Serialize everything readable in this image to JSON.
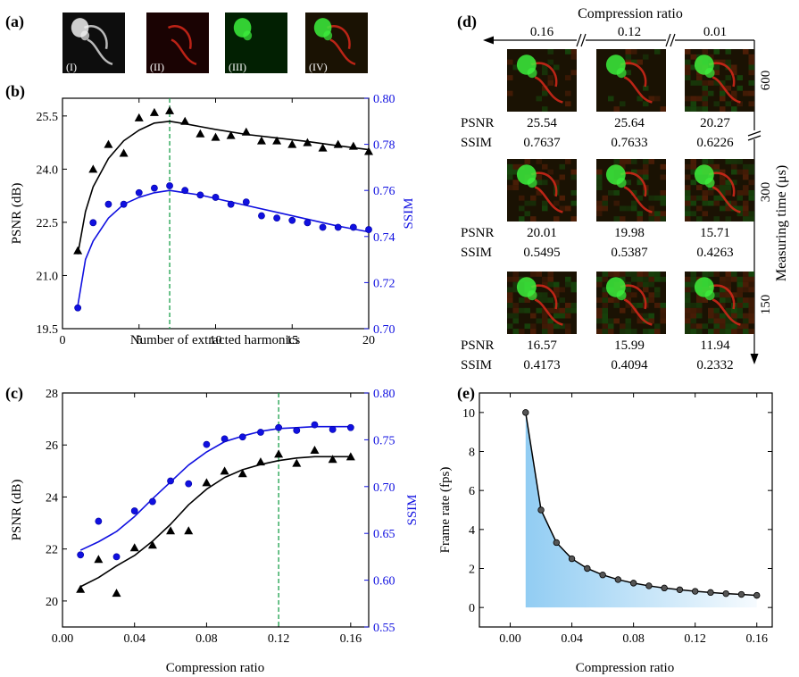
{
  "panels": {
    "a": {
      "label": "(a)",
      "tiles": [
        {
          "tag": "(I)",
          "tint": "#bdbdbd"
        },
        {
          "tag": "(II)",
          "tint": "#d21a1a"
        },
        {
          "tag": "(III)",
          "tint": "#1fd21f"
        },
        {
          "tag": "(IV)",
          "tint": "#b85a25"
        }
      ]
    },
    "d": {
      "label": "(d)",
      "title": "Compression ratio",
      "col_ratios": [
        "0.16",
        "0.12",
        "0.01"
      ],
      "time_label": "Measuring time (μs)",
      "row_times": [
        "600",
        "300",
        "150"
      ],
      "metric_labels": [
        "PSNR",
        "SSIM"
      ],
      "rows": [
        {
          "psnr": [
            "25.54",
            "25.64",
            "20.27"
          ],
          "ssim": [
            "0.7637",
            "0.7633",
            "0.6226"
          ]
        },
        {
          "psnr": [
            "20.01",
            "19.98",
            "15.71"
          ],
          "ssim": [
            "0.5495",
            "0.5387",
            "0.4263"
          ]
        },
        {
          "psnr": [
            "16.57",
            "15.99",
            "11.94"
          ],
          "ssim": [
            "0.4173",
            "0.4094",
            "0.2332"
          ]
        }
      ]
    }
  },
  "colors": {
    "black_series": "#000000",
    "blue_series": "#1010e0",
    "guide": "#1aa04a",
    "fill": "#8ccaf2"
  },
  "chart_data": [
    {
      "id": "b",
      "label": "(b)",
      "type": "scatter",
      "xlabel": "Number of extracted harmonics",
      "ylabel": "PSNR (dB)",
      "y2label": "SSIM",
      "xlim": [
        0,
        20
      ],
      "ylim": [
        19.5,
        26.0
      ],
      "y2lim": [
        0.7,
        0.8
      ],
      "xticks": [
        "0",
        "5",
        "10",
        "15",
        "20"
      ],
      "yticks": [
        "19.5",
        "21.0",
        "22.5",
        "24.0",
        "25.5"
      ],
      "y2ticks": [
        "0.70",
        "0.72",
        "0.74",
        "0.76",
        "0.78",
        "0.80"
      ],
      "vline": 7,
      "series": [
        {
          "name": "PSNR",
          "axis": "left",
          "marker": "triangle",
          "x": [
            1,
            2,
            3,
            4,
            5,
            6,
            7,
            8,
            9,
            10,
            11,
            12,
            13,
            14,
            15,
            16,
            17,
            18,
            19,
            20
          ],
          "values": [
            21.7,
            24.0,
            24.7,
            24.45,
            25.45,
            25.6,
            25.65,
            25.35,
            25.0,
            24.9,
            24.95,
            25.05,
            24.8,
            24.8,
            24.7,
            24.75,
            24.6,
            24.7,
            24.65,
            24.5
          ],
          "fit_x": [
            1,
            1.5,
            2,
            3,
            4,
            5,
            6,
            7,
            8,
            9,
            10,
            12,
            14,
            16,
            18,
            20
          ],
          "fit": [
            21.6,
            22.8,
            23.5,
            24.3,
            24.8,
            25.1,
            25.3,
            25.35,
            25.28,
            25.2,
            25.12,
            24.98,
            24.88,
            24.78,
            24.66,
            24.55
          ]
        },
        {
          "name": "SSIM",
          "axis": "right",
          "marker": "circle",
          "x": [
            1,
            2,
            3,
            4,
            5,
            6,
            7,
            8,
            9,
            10,
            11,
            12,
            13,
            14,
            15,
            16,
            17,
            18,
            19,
            20
          ],
          "values": [
            0.709,
            0.746,
            0.754,
            0.754,
            0.759,
            0.761,
            0.762,
            0.76,
            0.758,
            0.757,
            0.754,
            0.755,
            0.749,
            0.748,
            0.747,
            0.746,
            0.744,
            0.744,
            0.744,
            0.743
          ],
          "fit_x": [
            1,
            1.5,
            2,
            3,
            4,
            5,
            6,
            7,
            8,
            9,
            10,
            12,
            14,
            16,
            18,
            20
          ],
          "fit": [
            0.71,
            0.73,
            0.738,
            0.748,
            0.754,
            0.757,
            0.759,
            0.76,
            0.759,
            0.758,
            0.7565,
            0.7535,
            0.7505,
            0.7475,
            0.7445,
            0.742
          ]
        }
      ]
    },
    {
      "id": "c",
      "label": "(c)",
      "type": "scatter",
      "xlabel": "Compression ratio",
      "ylabel": "PSNR (dB)",
      "y2label": "SSIM",
      "xlim": [
        0,
        0.17
      ],
      "ylim": [
        19,
        28
      ],
      "y2lim": [
        0.55,
        0.8
      ],
      "xticks": [
        "0.00",
        "0.04",
        "0.08",
        "0.12",
        "0.16"
      ],
      "yticks": [
        "20",
        "22",
        "24",
        "26",
        "28"
      ],
      "y2ticks": [
        "0.55",
        "0.60",
        "0.65",
        "0.70",
        "0.75",
        "0.80"
      ],
      "vline": 0.12,
      "series": [
        {
          "name": "PSNR",
          "axis": "left",
          "marker": "triangle",
          "x": [
            0.01,
            0.02,
            0.03,
            0.04,
            0.05,
            0.06,
            0.07,
            0.08,
            0.09,
            0.1,
            0.11,
            0.12,
            0.13,
            0.14,
            0.15,
            0.16
          ],
          "values": [
            20.45,
            21.6,
            20.3,
            22.05,
            22.15,
            22.7,
            22.7,
            24.55,
            25.0,
            24.9,
            25.35,
            25.65,
            25.3,
            25.8,
            25.45,
            25.55
          ],
          "fit_x": [
            0.01,
            0.02,
            0.03,
            0.04,
            0.05,
            0.06,
            0.07,
            0.08,
            0.09,
            0.1,
            0.11,
            0.12,
            0.13,
            0.14,
            0.15,
            0.16
          ],
          "fit": [
            20.55,
            20.9,
            21.35,
            21.75,
            22.3,
            22.95,
            23.7,
            24.3,
            24.75,
            25.05,
            25.25,
            25.4,
            25.5,
            25.55,
            25.55,
            25.55
          ]
        },
        {
          "name": "SSIM",
          "axis": "right",
          "marker": "circle",
          "x": [
            0.01,
            0.02,
            0.03,
            0.04,
            0.05,
            0.06,
            0.07,
            0.08,
            0.09,
            0.1,
            0.11,
            0.12,
            0.13,
            0.14,
            0.15,
            0.16
          ],
          "values": [
            0.627,
            0.663,
            0.625,
            0.674,
            0.684,
            0.706,
            0.703,
            0.745,
            0.751,
            0.753,
            0.758,
            0.763,
            0.76,
            0.766,
            0.761,
            0.763
          ],
          "fit_x": [
            0.01,
            0.02,
            0.03,
            0.04,
            0.05,
            0.06,
            0.07,
            0.08,
            0.09,
            0.1,
            0.11,
            0.12,
            0.13,
            0.14,
            0.15,
            0.16
          ],
          "fit": [
            0.632,
            0.641,
            0.652,
            0.668,
            0.687,
            0.705,
            0.723,
            0.737,
            0.748,
            0.754,
            0.759,
            0.762,
            0.763,
            0.764,
            0.764,
            0.764
          ]
        }
      ]
    },
    {
      "id": "e",
      "label": "(e)",
      "type": "line",
      "xlabel": "Compression ratio",
      "ylabel": "Frame rate (fps)",
      "xlim": [
        -0.02,
        0.17
      ],
      "ylim": [
        -1,
        11
      ],
      "xticks": [
        "0.00",
        "0.04",
        "0.08",
        "0.12",
        "0.16"
      ],
      "yticks": [
        "0",
        "2",
        "4",
        "6",
        "8",
        "10"
      ],
      "series": [
        {
          "name": "Frame rate",
          "x": [
            0.01,
            0.02,
            0.03,
            0.04,
            0.05,
            0.06,
            0.07,
            0.08,
            0.09,
            0.1,
            0.11,
            0.12,
            0.13,
            0.14,
            0.15,
            0.16
          ],
          "values": [
            10,
            5,
            3.33,
            2.5,
            2,
            1.67,
            1.43,
            1.25,
            1.11,
            1.0,
            0.91,
            0.83,
            0.77,
            0.71,
            0.67,
            0.62
          ]
        }
      ]
    }
  ]
}
